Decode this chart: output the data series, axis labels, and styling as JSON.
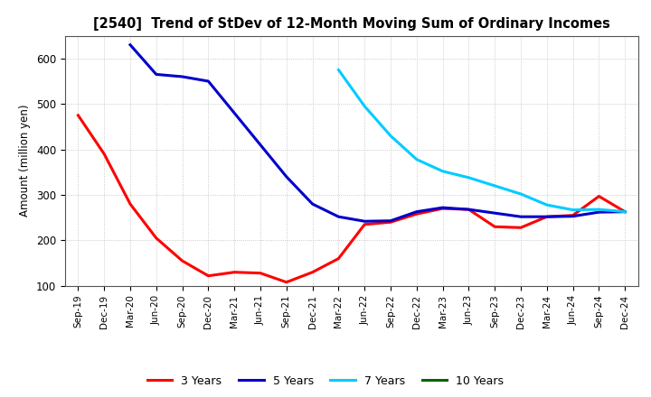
{
  "title": "[2540]  Trend of StDev of 12-Month Moving Sum of Ordinary Incomes",
  "ylabel": "Amount (million yen)",
  "ylim": [
    100,
    650
  ],
  "yticks": [
    100,
    200,
    300,
    400,
    500,
    600
  ],
  "background_color": "#ffffff",
  "grid_color": "#bbbbbb",
  "x_labels": [
    "Sep-19",
    "Dec-19",
    "Mar-20",
    "Jun-20",
    "Sep-20",
    "Dec-20",
    "Mar-21",
    "Jun-21",
    "Sep-21",
    "Dec-21",
    "Mar-22",
    "Jun-22",
    "Sep-22",
    "Dec-22",
    "Mar-23",
    "Jun-23",
    "Sep-23",
    "Dec-23",
    "Mar-24",
    "Jun-24",
    "Sep-24",
    "Dec-24"
  ],
  "series": [
    {
      "name": "3 Years",
      "color": "#ff0000",
      "data_x": [
        0,
        1,
        2,
        3,
        4,
        5,
        6,
        7,
        8,
        9,
        10,
        11,
        12,
        13,
        14,
        15,
        16,
        17,
        18,
        19,
        20,
        21
      ],
      "data_y": [
        475,
        390,
        280,
        205,
        155,
        122,
        130,
        128,
        108,
        130,
        160,
        235,
        240,
        258,
        270,
        268,
        230,
        228,
        252,
        255,
        297,
        263
      ]
    },
    {
      "name": "5 Years",
      "color": "#0000cc",
      "data_x": [
        2,
        3,
        4,
        5,
        6,
        7,
        8,
        9,
        10,
        11,
        12,
        13,
        14,
        15,
        16,
        17,
        18,
        19,
        20,
        21
      ],
      "data_y": [
        630,
        565,
        560,
        550,
        480,
        410,
        340,
        280,
        252,
        242,
        243,
        263,
        272,
        268,
        260,
        252,
        252,
        253,
        262,
        263
      ]
    },
    {
      "name": "7 Years",
      "color": "#00ccff",
      "data_x": [
        10,
        11,
        12,
        13,
        14,
        15,
        16,
        17,
        18,
        19,
        20,
        21
      ],
      "data_y": [
        575,
        495,
        430,
        378,
        352,
        338,
        320,
        302,
        278,
        267,
        268,
        263
      ]
    },
    {
      "name": "10 Years",
      "color": "#006600",
      "data_x": [],
      "data_y": []
    }
  ],
  "legend_loc": "lower center",
  "linewidth": 2.2
}
